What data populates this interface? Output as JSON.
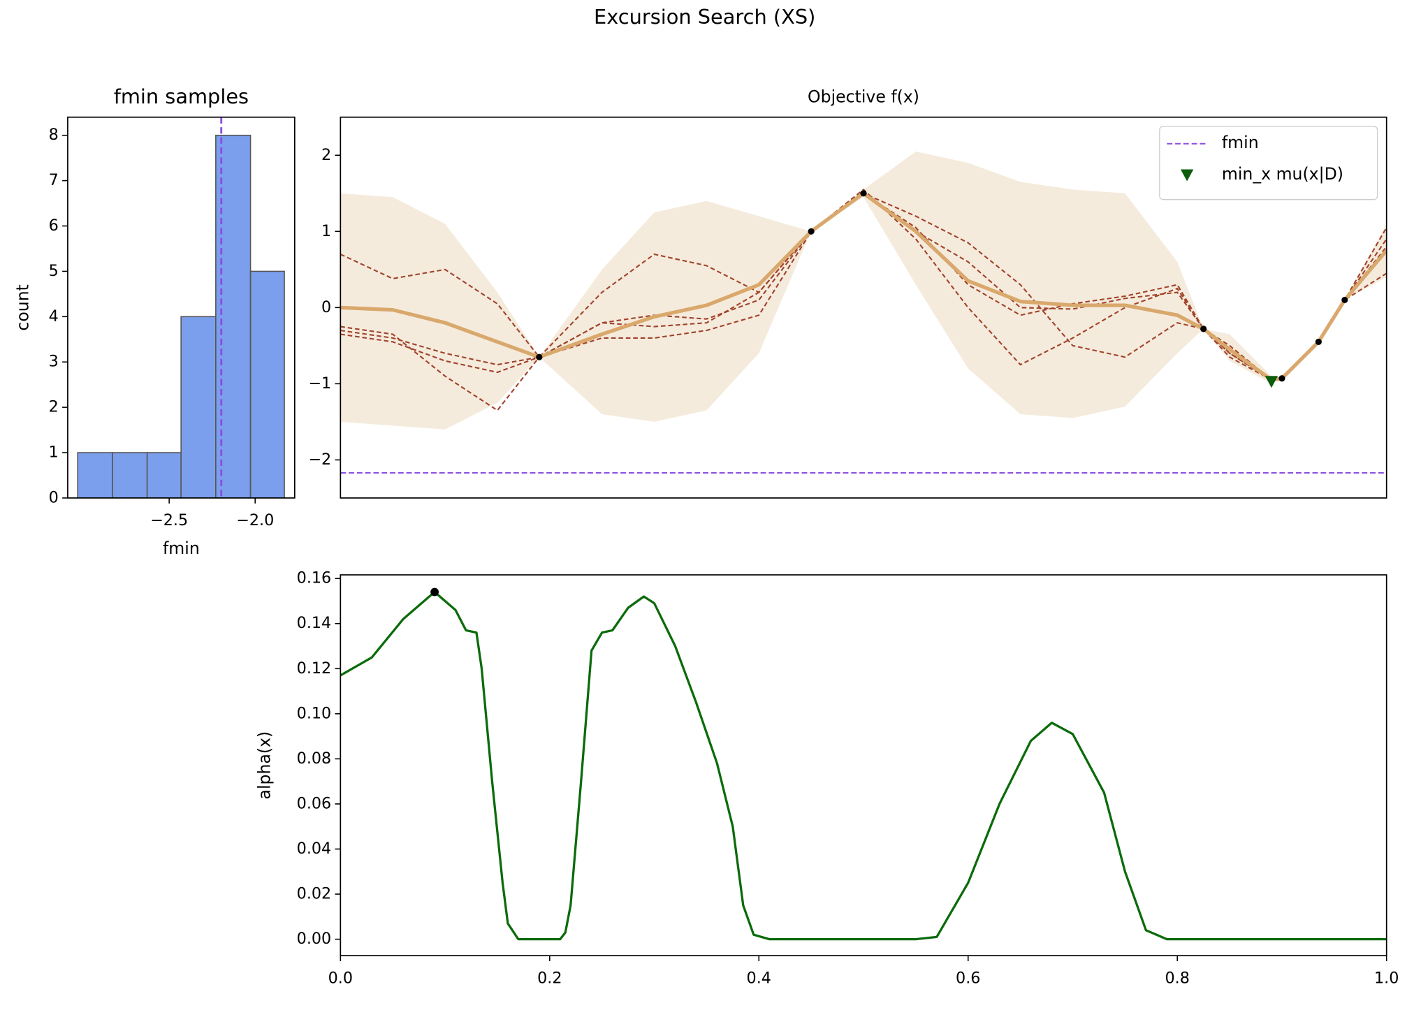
{
  "title": "Excursion Search (XS)",
  "chart_data": [
    {
      "type": "histogram",
      "title": "fmin samples",
      "x_label": "fmin",
      "y_label": "count",
      "bins": [
        -3.032,
        -2.83,
        -2.628,
        -2.431,
        -2.229,
        -2.027,
        -1.83
      ],
      "counts": [
        1,
        1,
        1,
        4,
        8,
        5
      ],
      "color": "#7b9fec",
      "edge_color": "#555555",
      "xlim": [
        -3.09,
        -1.77
      ],
      "ylim": [
        0,
        8.4
      ],
      "xticks": [
        {
          "value": -2.5,
          "label": "−2.5"
        },
        {
          "value": -2.0,
          "label": "−2.0"
        }
      ],
      "yticks": [
        0,
        1,
        2,
        3,
        4,
        5,
        6,
        7,
        8
      ],
      "vline": {
        "x": -2.197,
        "color": "#8a4fe0"
      }
    },
    {
      "type": "line",
      "title": "Objective f(x)",
      "x": [
        0,
        0.05,
        0.1,
        0.15,
        0.19,
        0.25,
        0.3,
        0.35,
        0.4,
        0.45,
        0.5,
        0.55,
        0.6,
        0.65,
        0.7,
        0.75,
        0.8,
        0.825,
        0.85,
        0.89,
        0.9,
        0.935,
        0.96,
        1.0
      ],
      "band": {
        "color": "#f5ebdd",
        "upper": [
          1.5,
          1.45,
          1.1,
          0.2,
          -0.65,
          0.5,
          1.25,
          1.4,
          1.2,
          1.0,
          1.55,
          2.05,
          1.9,
          1.65,
          1.55,
          1.5,
          0.6,
          -0.28,
          -0.35,
          -0.9,
          -0.93,
          -0.45,
          0.1,
          1.1
        ],
        "lower": [
          -1.5,
          -1.55,
          -1.6,
          -1.25,
          -0.65,
          -1.4,
          -1.5,
          -1.35,
          -0.6,
          1.0,
          1.45,
          0.3,
          -0.8,
          -1.4,
          -1.45,
          -1.3,
          -0.6,
          -0.28,
          -0.7,
          -1.0,
          -0.93,
          -0.45,
          0.1,
          0.4
        ]
      },
      "samples": [
        {
          "color": "#a0432a",
          "values": [
            0.7,
            0.38,
            0.5,
            0.05,
            -0.65,
            0.2,
            0.7,
            0.55,
            0.2,
            1.0,
            1.5,
            1.0,
            0.6,
            0.0,
            -0.02,
            0.12,
            0.2,
            -0.28,
            -0.6,
            -0.95,
            -0.93,
            -0.45,
            0.1,
            1.05
          ]
        },
        {
          "color": "#a0432a",
          "values": [
            -0.25,
            -0.35,
            -0.9,
            -1.35,
            -0.65,
            -0.2,
            -0.25,
            -0.2,
            0.2,
            1.0,
            1.5,
            1.2,
            0.85,
            0.3,
            -0.5,
            -0.65,
            -0.2,
            -0.28,
            -0.5,
            -0.95,
            -0.93,
            -0.45,
            0.1,
            0.8
          ]
        },
        {
          "color": "#a0432a",
          "values": [
            -0.3,
            -0.4,
            -0.6,
            -0.75,
            -0.65,
            -0.4,
            -0.4,
            -0.3,
            -0.1,
            1.0,
            1.55,
            0.9,
            0.0,
            -0.75,
            -0.4,
            0.0,
            0.25,
            -0.28,
            -0.65,
            -0.95,
            -0.93,
            -0.45,
            0.1,
            0.45
          ]
        },
        {
          "color": "#a0432a",
          "values": [
            -0.35,
            -0.45,
            -0.7,
            -0.85,
            -0.65,
            -0.2,
            -0.1,
            -0.15,
            0.1,
            1.0,
            1.5,
            1.05,
            0.3,
            -0.1,
            0.05,
            0.15,
            0.3,
            -0.28,
            -0.6,
            -0.95,
            -0.93,
            -0.45,
            0.1,
            0.9
          ]
        }
      ],
      "series": [
        {
          "color": "#d9a86c",
          "values": [
            0.0,
            -0.03,
            -0.2,
            -0.45,
            -0.65,
            -0.35,
            -0.12,
            0.03,
            0.3,
            1.0,
            1.5,
            1.0,
            0.35,
            0.08,
            0.03,
            0.03,
            -0.1,
            -0.28,
            -0.55,
            -0.95,
            -0.93,
            -0.45,
            0.1,
            0.75
          ]
        }
      ],
      "points": {
        "color": "#000000",
        "x": [
          0.19,
          0.45,
          0.5,
          0.825,
          0.9,
          0.935,
          0.96
        ],
        "y": [
          -0.65,
          1.0,
          1.5,
          -0.28,
          -0.93,
          -0.45,
          0.1
        ]
      },
      "hlines": [
        {
          "name": "fmin",
          "y": -2.17,
          "color": "#8a4fe0"
        }
      ],
      "markers": [
        {
          "name": "min_x mu(x|D)",
          "x": 0.89,
          "y": -0.97,
          "color": "#0b5d0b"
        }
      ],
      "legend": "upper right",
      "xlim": [
        0,
        1
      ],
      "ylim": [
        -2.5,
        2.5
      ],
      "yticks": [
        {
          "value": -2,
          "label": "−2"
        },
        {
          "value": -1,
          "label": "−1"
        },
        0,
        1,
        2
      ]
    },
    {
      "type": "line",
      "y_label": "alpha(x)",
      "x": [
        0,
        0.03,
        0.06,
        0.09,
        0.11,
        0.12,
        0.13,
        0.135,
        0.145,
        0.155,
        0.16,
        0.17,
        0.21,
        0.215,
        0.22,
        0.23,
        0.24,
        0.25,
        0.26,
        0.275,
        0.29,
        0.3,
        0.32,
        0.34,
        0.36,
        0.375,
        0.385,
        0.395,
        0.41,
        0.55,
        0.57,
        0.6,
        0.63,
        0.66,
        0.68,
        0.7,
        0.73,
        0.75,
        0.77,
        0.79,
        1.0
      ],
      "series": [
        {
          "color": "#0b6b0b",
          "values": [
            0.117,
            0.125,
            0.142,
            0.154,
            0.146,
            0.137,
            0.136,
            0.12,
            0.07,
            0.025,
            0.007,
            0.0,
            0.0,
            0.003,
            0.015,
            0.07,
            0.128,
            0.136,
            0.137,
            0.147,
            0.152,
            0.149,
            0.13,
            0.105,
            0.078,
            0.05,
            0.015,
            0.002,
            0.0,
            0.0,
            0.001,
            0.025,
            0.06,
            0.088,
            0.096,
            0.091,
            0.065,
            0.03,
            0.004,
            0.0,
            0.0
          ]
        }
      ],
      "points": {
        "color": "#000000",
        "x": [
          0.09
        ],
        "y": [
          0.154
        ]
      },
      "xlim": [
        0,
        1
      ],
      "ylim": [
        -0.0073,
        0.1616
      ],
      "xticks": [
        {
          "value": 0,
          "label": "0.0"
        },
        0.2,
        0.4,
        0.6,
        0.8,
        {
          "value": 1,
          "label": "1.0"
        }
      ],
      "yticks": [
        {
          "value": 0,
          "label": "0.00"
        },
        0.02,
        0.04,
        0.06,
        0.08,
        {
          "value": 0.1,
          "label": "0.10"
        },
        0.12,
        0.14,
        0.16
      ]
    }
  ]
}
